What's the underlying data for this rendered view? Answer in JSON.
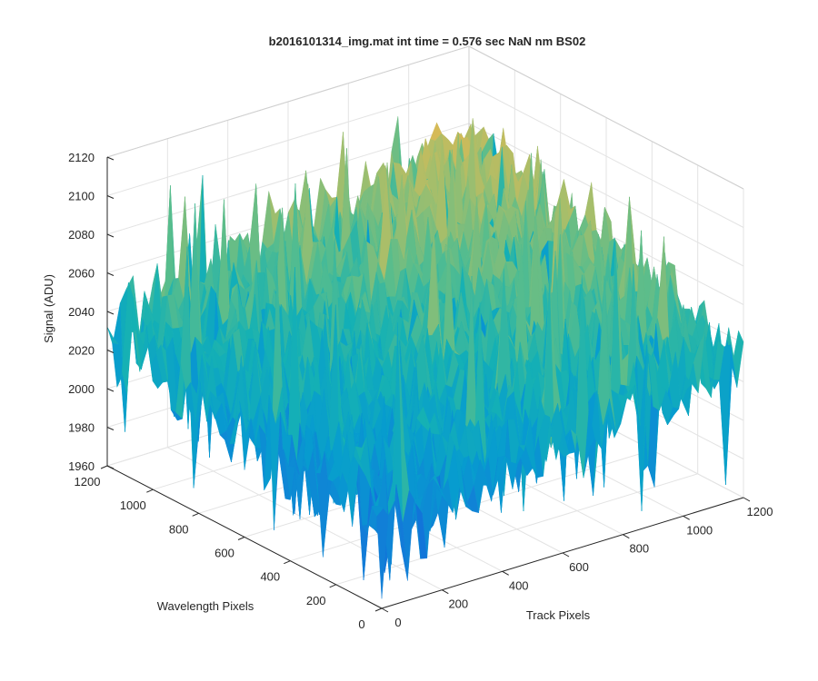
{
  "chart_data": {
    "type": "surface3d",
    "title": "b2016101314_img.mat int time = 0.576 sec  NaN nm BS02",
    "xlabel": "Track Pixels",
    "ylabel": "Wavelength Pixels",
    "zlabel": "Signal (ADU)",
    "xlim": [
      0,
      1200
    ],
    "ylim": [
      0,
      1200
    ],
    "zlim": [
      1960,
      2120
    ],
    "x_ticks": [
      "0",
      "200",
      "400",
      "600",
      "800",
      "1000",
      "1200"
    ],
    "y_ticks": [
      "0",
      "200",
      "400",
      "600",
      "800",
      "1000",
      "1200"
    ],
    "z_ticks": [
      "1960",
      "1980",
      "2000",
      "2020",
      "2040",
      "2060",
      "2080",
      "2100",
      "2120"
    ],
    "grid": true,
    "colormap": "parula",
    "surface_summary": {
      "description_values": "noisy detector image surface",
      "corner_levels": {
        "near_origin": 2000,
        "far_corner": 2075,
        "left_corner": 2030,
        "right_corner": 2035
      },
      "noise_amplitude": 25,
      "min_spike": 1965,
      "max_spike": 2105
    }
  }
}
